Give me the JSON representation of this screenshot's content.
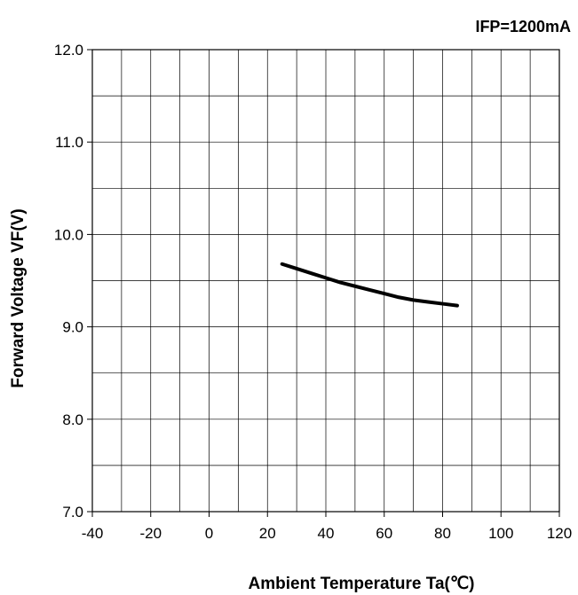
{
  "chart_data": {
    "type": "line",
    "annotation": "IFP=1200mA",
    "xlabel": "Ambient Temperature Ta(℃)",
    "ylabel": "Forward Voltage VF(V)",
    "xlim": [
      -40,
      120
    ],
    "ylim": [
      7.0,
      12.0
    ],
    "x_ticks": [
      -40,
      -20,
      0,
      20,
      40,
      60,
      80,
      100,
      120
    ],
    "x_tick_labels": [
      "-40",
      "-20",
      "0",
      "20",
      "40",
      "60",
      "80",
      "100",
      "120"
    ],
    "x_minor_step": 10,
    "y_ticks": [
      7.0,
      8.0,
      9.0,
      10.0,
      11.0,
      12.0
    ],
    "y_tick_labels": [
      "7.0",
      "8.0",
      "9.0",
      "10.0",
      "11.0",
      "12.0"
    ],
    "y_minor_step": 0.5,
    "grid": true,
    "series": [
      {
        "color": "#000000",
        "x": [
          25,
          30,
          35,
          40,
          45,
          50,
          55,
          60,
          65,
          70,
          75,
          80,
          85
        ],
        "y": [
          9.68,
          9.63,
          9.58,
          9.53,
          9.48,
          9.44,
          9.4,
          9.36,
          9.32,
          9.29,
          9.27,
          9.25,
          9.23
        ]
      }
    ]
  }
}
